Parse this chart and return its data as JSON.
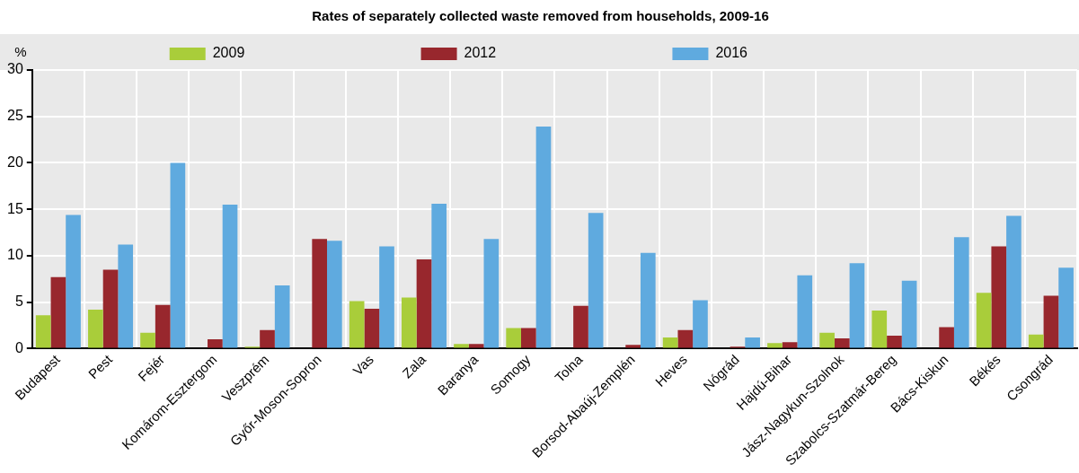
{
  "chart_data": {
    "type": "bar",
    "title": "Rates of separately collected waste removed from households, 2009-16",
    "ylabel": "%",
    "categories": [
      "Budapest",
      "Pest",
      "Fejér",
      "Komárom-Esztergom",
      "Veszprém",
      "Győr-Moson-Sopron",
      "Vas",
      "Zala",
      "Baranya",
      "Somogy",
      "Tolna",
      "Borsod-Abaúj-Zemplén",
      "Heves",
      "Nógrád",
      "Hajdú-Bihar",
      "Jász-Nagykun-Szolnok",
      "Szabolcs-Szatmár-Bereg",
      "Bács-Kiskun",
      "Békés",
      "Csongrád"
    ],
    "series": [
      {
        "name": "2009",
        "color": "#a9cd3a",
        "values": [
          3.6,
          4.2,
          1.7,
          0,
          0.2,
          0,
          5.1,
          5.5,
          0.5,
          2.2,
          0,
          0,
          1.2,
          0,
          0.6,
          1.7,
          4.1,
          0,
          6,
          1.5
        ]
      },
      {
        "name": "2012",
        "color": "#98272d",
        "values": [
          7.7,
          8.5,
          4.7,
          1,
          2,
          11.8,
          4.3,
          9.6,
          0.5,
          2.2,
          4.6,
          0.4,
          2,
          0.2,
          0.7,
          1.1,
          1.4,
          2.3,
          11,
          5.7
        ]
      },
      {
        "name": "2016",
        "color": "#5faadf",
        "values": [
          14.4,
          11.2,
          20,
          15.5,
          6.8,
          11.6,
          11,
          15.6,
          11.8,
          23.9,
          14.6,
          10.3,
          5.2,
          1.2,
          7.9,
          9.2,
          7.3,
          12,
          14.3,
          8.7
        ]
      }
    ],
    "ylim": [
      0,
      30
    ],
    "yticks": [
      0,
      5,
      10,
      15,
      20,
      25,
      30
    ],
    "grid": true,
    "legend": "top"
  }
}
